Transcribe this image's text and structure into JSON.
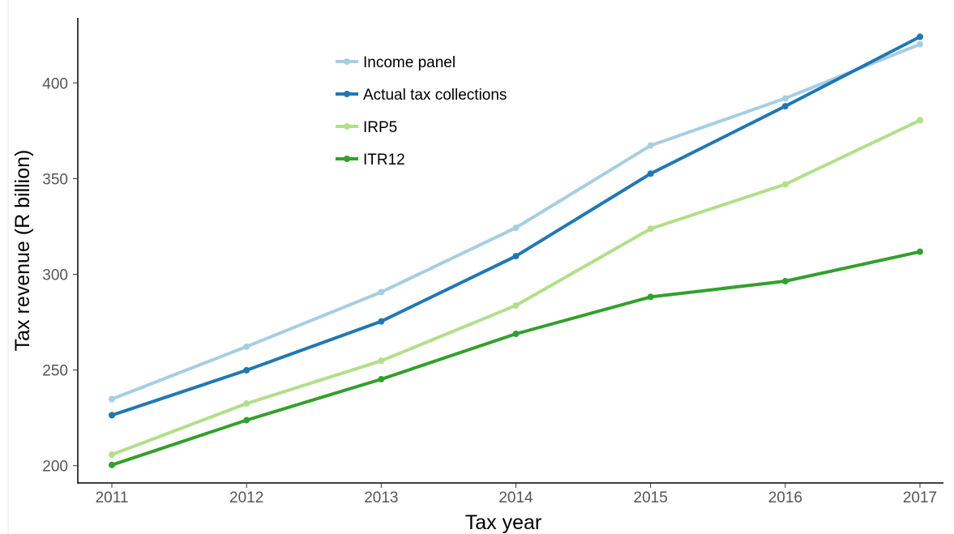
{
  "chart_data": {
    "type": "line",
    "title": "",
    "xlabel": "Tax year",
    "ylabel": "Tax revenue (R billion)",
    "x": [
      2011,
      2012,
      2013,
      2014,
      2015,
      2016,
      2017
    ],
    "x_tick_labels": [
      "2011",
      "2012",
      "2013",
      "2014",
      "2015",
      "2016",
      "2017"
    ],
    "y_ticks": [
      200,
      250,
      300,
      350,
      400
    ],
    "y_tick_labels": [
      "200",
      "250",
      "300",
      "350",
      "400"
    ],
    "ylim": [
      191,
      434
    ],
    "grid": false,
    "legend_position": "top-center",
    "series": [
      {
        "name": "Income panel",
        "color": "#a6cee3",
        "values": [
          234.8,
          262.2,
          290.7,
          324.3,
          367.3,
          391.9,
          420.2
        ]
      },
      {
        "name": "Actual tax collections",
        "color": "#1f78b4",
        "values": [
          226.4,
          249.9,
          275.4,
          309.5,
          352.6,
          387.8,
          424.1
        ]
      },
      {
        "name": "IRP5",
        "color": "#b2df8a",
        "values": [
          205.8,
          232.5,
          254.8,
          283.7,
          323.8,
          347.0,
          380.5
        ]
      },
      {
        "name": "ITR12",
        "color": "#33a02c",
        "values": [
          200.4,
          223.8,
          245.2,
          268.9,
          288.2,
          296.4,
          311.8
        ]
      }
    ]
  }
}
